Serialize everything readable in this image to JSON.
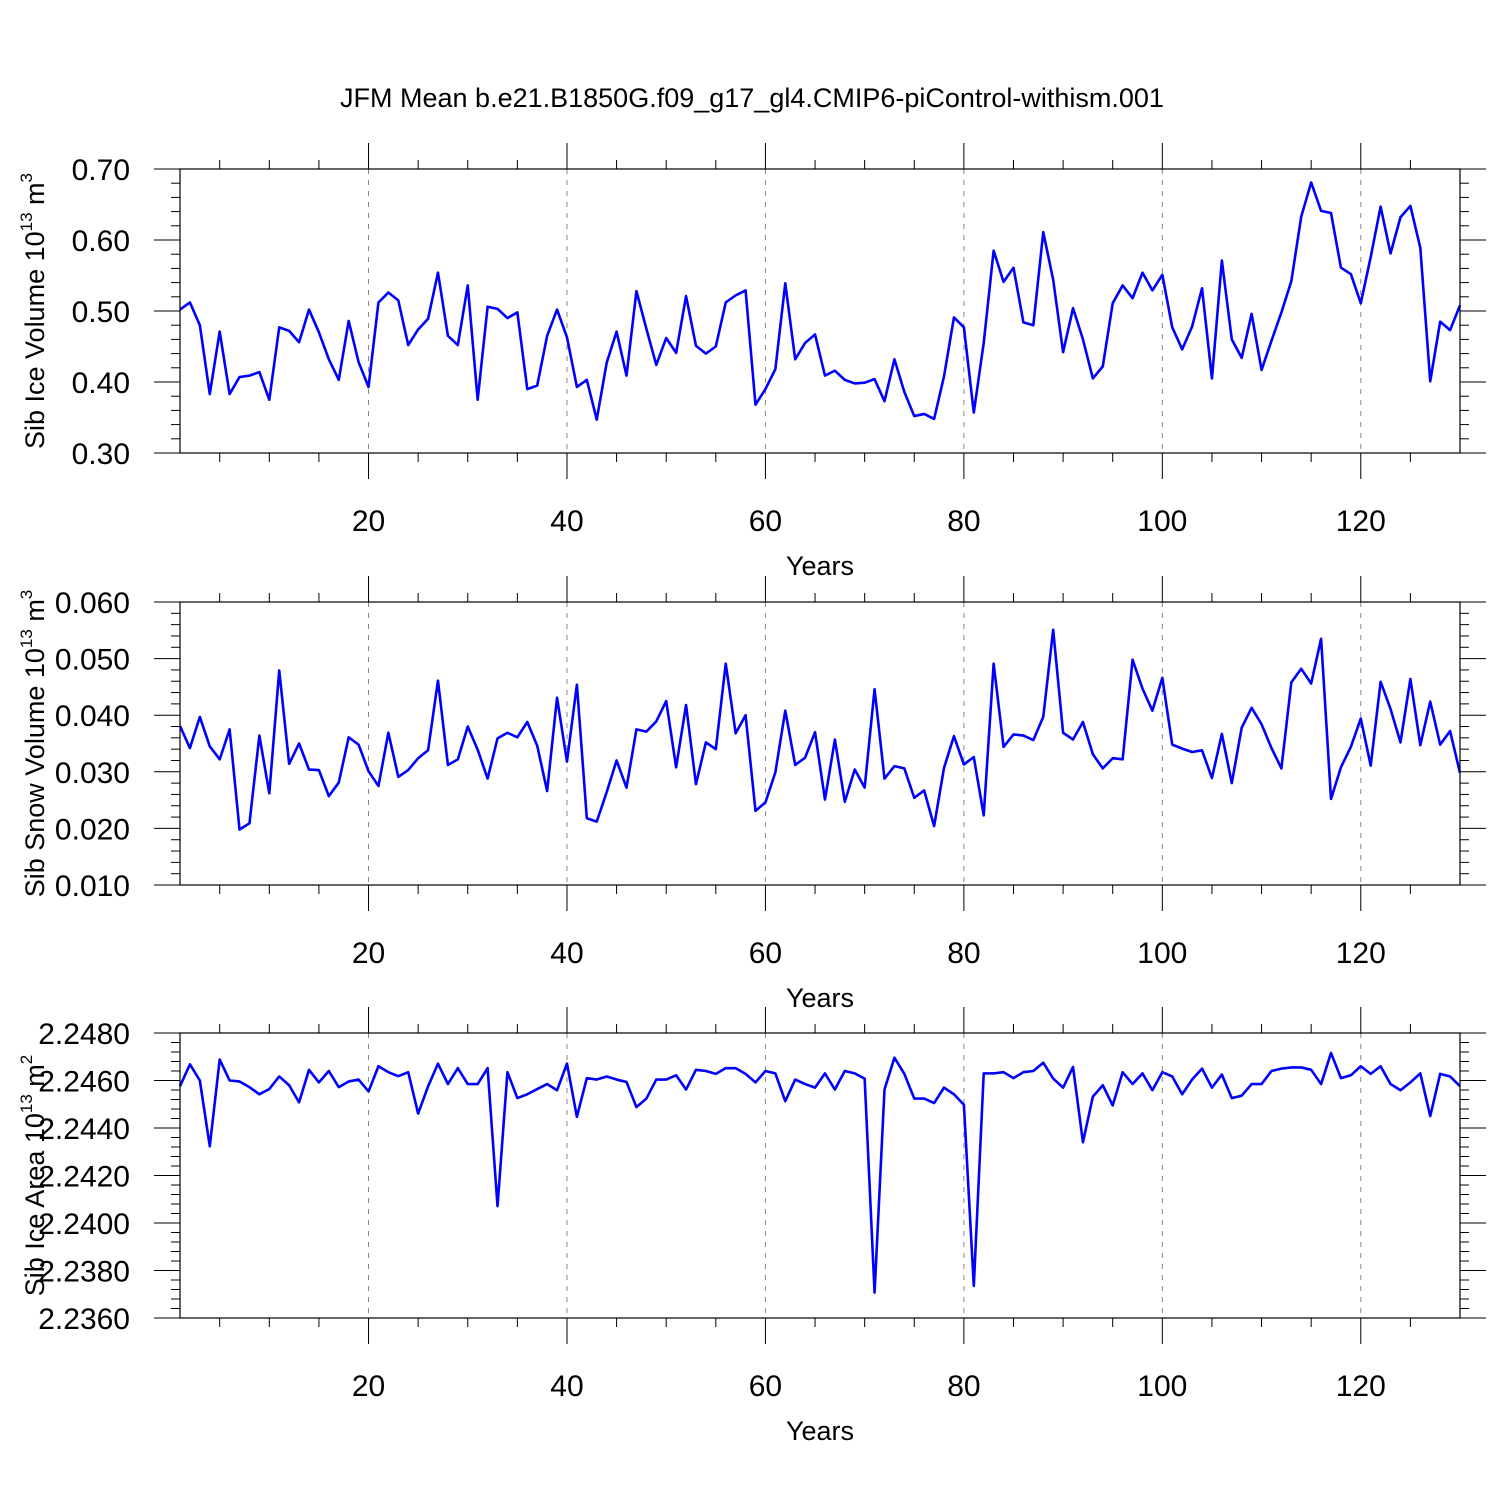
{
  "title": "JFM Mean b.e21.B1850G.f09_g17_gl4.CMIP6-piControl-withism.001",
  "colors": {
    "line": "#0000ff",
    "axis": "#000000",
    "grid": "#888888"
  },
  "chart_data": [
    {
      "type": "line",
      "xlabel": "Years",
      "ylabel_main": "Sib Ice Volume 10",
      "ylabel_exp": "13",
      "ylabel_unit": " m",
      "ylabel_unit_exp": "3",
      "xlim": [
        1,
        130
      ],
      "ylim": [
        0.3,
        0.7
      ],
      "xticks": [
        20,
        40,
        60,
        80,
        100,
        120
      ],
      "xtick_labels": [
        "20",
        "40",
        "60",
        "80",
        "100",
        "120"
      ],
      "yticks": [
        0.3,
        0.4,
        0.5,
        0.6,
        0.7
      ],
      "ytick_labels": [
        "0.30",
        "0.40",
        "0.50",
        "0.60",
        "0.70"
      ],
      "grid": "vertical dashed at major x ticks",
      "series": [
        {
          "x_start": 1,
          "values": [
            0.502,
            0.512,
            0.48,
            0.383,
            0.471,
            0.383,
            0.407,
            0.409,
            0.414,
            0.375,
            0.477,
            0.472,
            0.456,
            0.502,
            0.47,
            0.432,
            0.403,
            0.486,
            0.428,
            0.393,
            0.512,
            0.526,
            0.515,
            0.452,
            0.474,
            0.489,
            0.554,
            0.465,
            0.452,
            0.536,
            0.375,
            0.506,
            0.503,
            0.49,
            0.498,
            0.39,
            0.395,
            0.465,
            0.502,
            0.463,
            0.393,
            0.403,
            0.347,
            0.427,
            0.471,
            0.409,
            0.528,
            0.475,
            0.424,
            0.462,
            0.441,
            0.521,
            0.451,
            0.44,
            0.45,
            0.512,
            0.522,
            0.529,
            0.368,
            0.39,
            0.418,
            0.539,
            0.432,
            0.455,
            0.467,
            0.409,
            0.416,
            0.403,
            0.398,
            0.399,
            0.404,
            0.373,
            0.432,
            0.386,
            0.352,
            0.355,
            0.348,
            0.408,
            0.491,
            0.477,
            0.357,
            0.455,
            0.585,
            0.541,
            0.561,
            0.484,
            0.48,
            0.611,
            0.544,
            0.442,
            0.504,
            0.46,
            0.405,
            0.422,
            0.511,
            0.536,
            0.518,
            0.554,
            0.529,
            0.551,
            0.477,
            0.446,
            0.478,
            0.532,
            0.405,
            0.571,
            0.46,
            0.434,
            0.496,
            0.417,
            0.458,
            0.498,
            0.542,
            0.633,
            0.681,
            0.641,
            0.638,
            0.561,
            0.552,
            0.511,
            0.576,
            0.647,
            0.581,
            0.632,
            0.648,
            0.589,
            0.401,
            0.485,
            0.473,
            0.508
          ]
        }
      ]
    },
    {
      "type": "line",
      "xlabel": "Years",
      "ylabel_main": "Sib Snow Volume 10",
      "ylabel_exp": "13",
      "ylabel_unit": " m",
      "ylabel_unit_exp": "3",
      "xlim": [
        1,
        130
      ],
      "ylim": [
        0.01,
        0.06
      ],
      "xticks": [
        20,
        40,
        60,
        80,
        100,
        120
      ],
      "xtick_labels": [
        "20",
        "40",
        "60",
        "80",
        "100",
        "120"
      ],
      "yticks": [
        0.01,
        0.02,
        0.03,
        0.04,
        0.05,
        0.06
      ],
      "ytick_labels": [
        "0.010",
        "0.020",
        "0.030",
        "0.040",
        "0.050",
        "0.060"
      ],
      "grid": "vertical dashed at major x ticks",
      "series": [
        {
          "x_start": 1,
          "values": [
            0.0381,
            0.0342,
            0.0397,
            0.0345,
            0.0322,
            0.0375,
            0.0198,
            0.0209,
            0.0364,
            0.0262,
            0.0479,
            0.0314,
            0.035,
            0.0304,
            0.0303,
            0.0257,
            0.0281,
            0.0361,
            0.0348,
            0.0301,
            0.0275,
            0.0369,
            0.0291,
            0.0303,
            0.0324,
            0.0338,
            0.0461,
            0.0312,
            0.0322,
            0.038,
            0.0339,
            0.0288,
            0.0359,
            0.0369,
            0.0361,
            0.0388,
            0.0346,
            0.0266,
            0.0431,
            0.0318,
            0.0454,
            0.0218,
            0.0212,
            0.0264,
            0.032,
            0.0272,
            0.0375,
            0.0371,
            0.0389,
            0.0425,
            0.0308,
            0.0418,
            0.0278,
            0.0352,
            0.034,
            0.0491,
            0.0368,
            0.04,
            0.0231,
            0.0246,
            0.0299,
            0.0408,
            0.0312,
            0.0325,
            0.037,
            0.0251,
            0.0357,
            0.0247,
            0.0304,
            0.0272,
            0.0446,
            0.0288,
            0.031,
            0.0306,
            0.0254,
            0.0267,
            0.0204,
            0.0307,
            0.0363,
            0.0313,
            0.0326,
            0.0223,
            0.0491,
            0.0344,
            0.0366,
            0.0364,
            0.0356,
            0.0397,
            0.0551,
            0.0369,
            0.0357,
            0.0388,
            0.0331,
            0.0306,
            0.0324,
            0.0322,
            0.0498,
            0.0447,
            0.0408,
            0.0466,
            0.0348,
            0.0341,
            0.0335,
            0.0338,
            0.0289,
            0.0367,
            0.028,
            0.0378,
            0.0413,
            0.0384,
            0.0342,
            0.0306,
            0.0458,
            0.0482,
            0.0456,
            0.0535,
            0.0252,
            0.0308,
            0.0344,
            0.0394,
            0.0311,
            0.0459,
            0.0411,
            0.0352,
            0.0464,
            0.0347,
            0.0424,
            0.0348,
            0.0372,
            0.0298
          ]
        }
      ]
    },
    {
      "type": "line",
      "xlabel": "Years",
      "ylabel_main": "Sib Ice Area 10",
      "ylabel_exp": "13",
      "ylabel_unit": " m",
      "ylabel_unit_exp": "2",
      "xlim": [
        1,
        130
      ],
      "ylim": [
        2.236,
        2.248
      ],
      "xticks": [
        20,
        40,
        60,
        80,
        100,
        120
      ],
      "xtick_labels": [
        "20",
        "40",
        "60",
        "80",
        "100",
        "120"
      ],
      "yticks": [
        2.236,
        2.238,
        2.24,
        2.242,
        2.244,
        2.246,
        2.248
      ],
      "ytick_labels": [
        "2.2360",
        "2.2380",
        "2.2400",
        "2.2420",
        "2.2440",
        "2.2460",
        "2.2480"
      ],
      "grid": "vertical dashed at major x ticks",
      "series": [
        {
          "x_start": 1,
          "values": [
            2.24576,
            2.24668,
            2.246,
            2.24323,
            2.24688,
            2.246,
            2.24596,
            2.24572,
            2.24542,
            2.24564,
            2.24617,
            2.2458,
            2.24508,
            2.24645,
            2.24592,
            2.2464,
            2.24572,
            2.24596,
            2.24604,
            2.24554,
            2.2466,
            2.24635,
            2.24618,
            2.24635,
            2.24461,
            2.24575,
            2.24671,
            2.24585,
            2.24652,
            2.24585,
            2.24585,
            2.24652,
            2.24071,
            2.24635,
            2.24526,
            2.24542,
            2.24564,
            2.24585,
            2.24559,
            2.24671,
            2.24447,
            2.2461,
            2.24604,
            2.24617,
            2.24604,
            2.24594,
            2.24488,
            2.24524,
            2.24604,
            2.24604,
            2.24622,
            2.24562,
            2.24645,
            2.2464,
            2.24628,
            2.24652,
            2.24652,
            2.24628,
            2.24592,
            2.2464,
            2.2463,
            2.24513,
            2.24604,
            2.24585,
            2.2457,
            2.2463,
            2.24562,
            2.2464,
            2.2463,
            2.24608,
            2.23707,
            2.24562,
            2.24696,
            2.24628,
            2.24524,
            2.24524,
            2.24505,
            2.2457,
            2.24542,
            2.24498,
            2.23735,
            2.2463,
            2.2463,
            2.24635,
            2.2461,
            2.24635,
            2.2464,
            2.24675,
            2.24608,
            2.2457,
            2.24657,
            2.2434,
            2.24532,
            2.2458,
            2.24495,
            2.24635,
            2.24585,
            2.2463,
            2.24559,
            2.24635,
            2.24617,
            2.24542,
            2.24604,
            2.2465,
            2.2457,
            2.24625,
            2.24526,
            2.24536,
            2.24585,
            2.24585,
            2.2464,
            2.2465,
            2.24655,
            2.24655,
            2.24645,
            2.24585,
            2.24716,
            2.2461,
            2.24622,
            2.2466,
            2.24628,
            2.2466,
            2.24585,
            2.24559,
            2.24592,
            2.2463,
            2.2445,
            2.24628,
            2.24617,
            2.24576
          ]
        }
      ]
    }
  ]
}
